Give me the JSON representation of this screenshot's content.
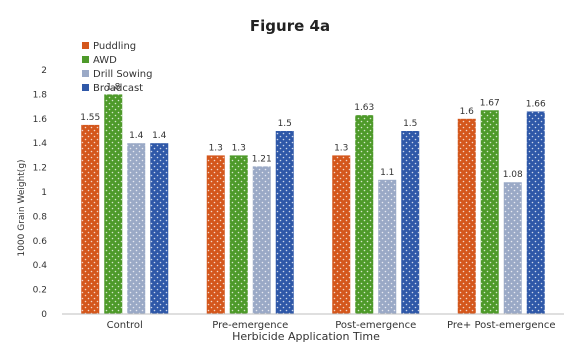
{
  "chart_data": {
    "type": "bar",
    "title": "Figure 4a",
    "xlabel": "Herbicide Application Time",
    "ylabel": "1000 Grain Weight(g)",
    "categories": [
      "Control",
      "Pre-emergence",
      "Post-emergence",
      "Pre+ Post-emergence"
    ],
    "ylim": [
      0,
      2
    ],
    "yticks": [
      "0",
      "0.2",
      "0.4",
      "0.6",
      "0.8",
      "1",
      "1.2",
      "1.4",
      "1.6",
      "1.8",
      "2"
    ],
    "grid": false,
    "legend_position": "top-left",
    "series": [
      {
        "name": "Puddling",
        "color": "#d4571c",
        "values": [
          1.55,
          1.3,
          1.3,
          1.6
        ],
        "labels": [
          "1.55",
          "1.3",
          "1.3",
          "1.6"
        ]
      },
      {
        "name": "AWD",
        "color": "#4e9a2a",
        "values": [
          1.8,
          1.3,
          1.63,
          1.67
        ],
        "labels": [
          "1.8",
          "1.3",
          "1.63",
          "1.67"
        ]
      },
      {
        "name": "Drill Sowing",
        "color": "#9aa9c6",
        "values": [
          1.4,
          1.21,
          1.1,
          1.08
        ],
        "labels": [
          "1.4",
          "1.21",
          "1.1",
          "1.08"
        ]
      },
      {
        "name": "Broadcast",
        "color": "#2f58a8",
        "values": [
          1.4,
          1.5,
          1.5,
          1.66
        ],
        "labels": [
          "1.4",
          "1.5",
          "1.5",
          "1.66"
        ]
      }
    ]
  }
}
